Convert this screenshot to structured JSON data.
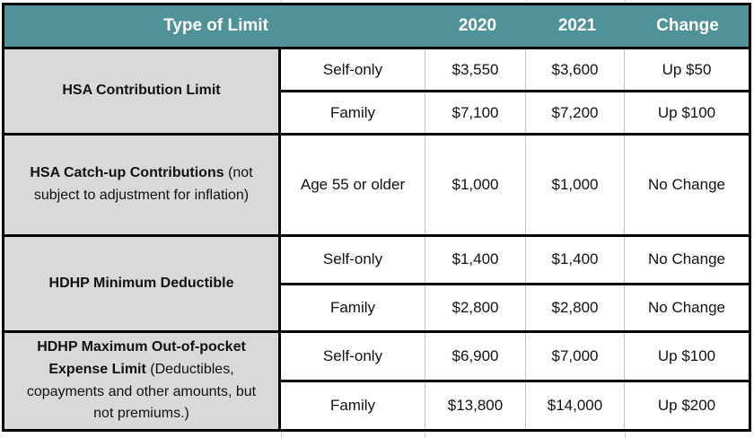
{
  "colors": {
    "header_bg": "#4F929A",
    "header_text": "#FFFFFF",
    "group_label_bg": "#D9D9D9",
    "outer_border": "#000000",
    "light_grid": "#BFBFBF"
  },
  "table": {
    "columns": [
      "Type of Limit",
      "2020",
      "2021",
      "Change"
    ],
    "groups": [
      {
        "label_bold": "HSA Contribution Limit",
        "label_rest": "",
        "rows": [
          {
            "category": "Self-only",
            "y2020": "$3,550",
            "y2021": "$3,600",
            "change": "Up $50"
          },
          {
            "category": "Family",
            "y2020": "$7,100",
            "y2021": "$7,200",
            "change": "Up $100"
          }
        ]
      },
      {
        "label_bold": "HSA Catch-up Contributions",
        "label_rest": " (not subject to adjustment for inflation)",
        "rows": [
          {
            "category": "Age 55 or older",
            "y2020": "$1,000",
            "y2021": "$1,000",
            "change": "No Change"
          }
        ]
      },
      {
        "label_bold": "HDHP Minimum Deductible",
        "label_rest": "",
        "rows": [
          {
            "category": "Self-only",
            "y2020": "$1,400",
            "y2021": "$1,400",
            "change": "No Change"
          },
          {
            "category": "Family",
            "y2020": "$2,800",
            "y2021": "$2,800",
            "change": "No Change"
          }
        ]
      },
      {
        "label_bold": "HDHP Maximum Out-of-pocket Expense Limit",
        "label_rest": " (Deductibles, copayments and other amounts, but not premiums.)",
        "rows": [
          {
            "category": "Self-only",
            "y2020": "$6,900",
            "y2021": "$7,000",
            "change": "Up $100"
          },
          {
            "category": "Family",
            "y2020": "$13,800",
            "y2021": "$14,000",
            "change": "Up $200"
          }
        ]
      }
    ]
  }
}
